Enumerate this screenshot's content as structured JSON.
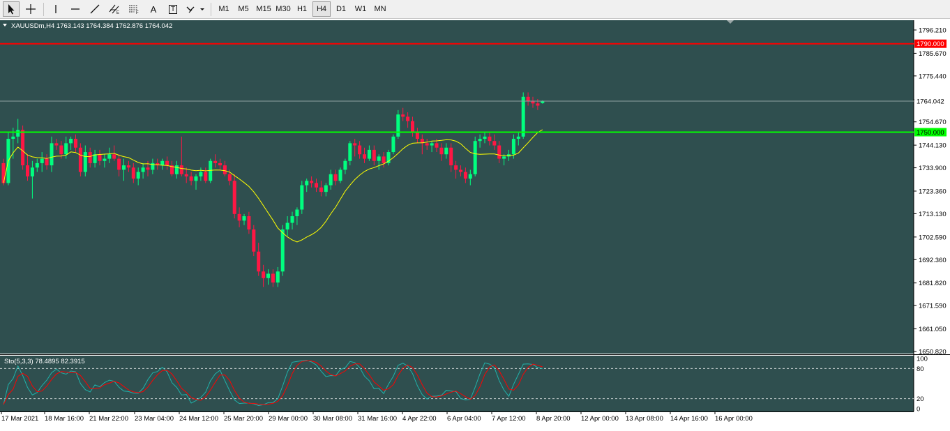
{
  "toolbar": {
    "tools": [
      {
        "name": "cursor-tool",
        "icon": "arrow-cursor-icon"
      },
      {
        "name": "crosshair-tool",
        "icon": "crosshair-icon"
      },
      {
        "name": "vertical-line-tool",
        "icon": "vertical-line-icon"
      },
      {
        "name": "horizontal-line-tool",
        "icon": "horizontal-line-icon"
      },
      {
        "name": "trendline-tool",
        "icon": "trendline-icon"
      },
      {
        "name": "equidistant-channel-tool",
        "icon": "channel-icon"
      },
      {
        "name": "fibonacci-tool",
        "icon": "fibonacci-icon"
      },
      {
        "name": "text-tool",
        "icon": "text-A-icon",
        "label": "A"
      },
      {
        "name": "text-label-tool",
        "icon": "text-label-icon",
        "label": "T"
      },
      {
        "name": "arrows-tool",
        "icon": "arrows-dropdown-icon"
      }
    ],
    "timeframes": [
      "M1",
      "M5",
      "M15",
      "M30",
      "H1",
      "H4",
      "D1",
      "W1",
      "MN"
    ],
    "active_timeframe": "H4"
  },
  "chart": {
    "info": "XAUUSDm,H4  1763.143 1764.384 1762.876 1764.042",
    "background": "#2f4f4f",
    "bull_color": "#00ff7f",
    "bear_color": "#ff1744",
    "ma_color": "#ffff00",
    "price_ticks": [
      "1796.210",
      "1785.670",
      "1775.440",
      "1764.670",
      "1754.670",
      "1744.130",
      "1733.900",
      "1723.360",
      "1713.130",
      "1702.590",
      "1692.360",
      "1681.820",
      "1671.590",
      "1661.050",
      "1650.820"
    ],
    "red_line_label": "1790.000",
    "green_line_label": "1750.000",
    "current_price_label": "1764.042",
    "stoch_info": "Sto(5,3,3) 78.4895 82.3915",
    "stoch_ticks": [
      "100",
      "80",
      "20",
      "0"
    ],
    "time_labels": [
      "17 Mar 2021",
      "18 Mar 16:00",
      "21 Mar 22:00",
      "23 Mar 04:00",
      "24 Mar 12:00",
      "25 Mar 20:00",
      "29 Mar 00:00",
      "30 Mar 08:00",
      "31 Mar 16:00",
      "4 Apr 22:00",
      "6 Apr 04:00",
      "7 Apr 12:00",
      "8 Apr 20:00",
      "12 Apr 00:00",
      "13 Apr 08:00",
      "14 Apr 16:00",
      "16 Apr 00:00"
    ]
  },
  "chart_data": {
    "type": "candlestick",
    "symbol": "XAUUSDm",
    "timeframe": "H4",
    "ylim": [
      1650.82,
      1796.21
    ],
    "horizontal_lines": [
      1790.0,
      1750.0
    ],
    "last_price": 1764.042,
    "candles": [
      [
        1736,
        1738,
        1726,
        1727
      ],
      [
        1727,
        1750,
        1726,
        1747
      ],
      [
        1747,
        1752,
        1738,
        1748
      ],
      [
        1748,
        1756,
        1745,
        1751
      ],
      [
        1751,
        1753,
        1733,
        1735
      ],
      [
        1735,
        1740,
        1728,
        1730
      ],
      [
        1730,
        1737,
        1720,
        1734
      ],
      [
        1734,
        1738,
        1732,
        1736
      ],
      [
        1736,
        1741,
        1732,
        1738
      ],
      [
        1738,
        1740,
        1733,
        1735
      ],
      [
        1735,
        1748,
        1732,
        1745
      ],
      [
        1745,
        1747,
        1742,
        1744
      ],
      [
        1744,
        1746,
        1738,
        1740
      ],
      [
        1740,
        1748,
        1738,
        1745
      ],
      [
        1745,
        1748,
        1742,
        1747
      ],
      [
        1747,
        1749,
        1741,
        1743
      ],
      [
        1743,
        1745,
        1730,
        1732
      ],
      [
        1732,
        1744,
        1730,
        1741
      ],
      [
        1741,
        1743,
        1734,
        1736
      ],
      [
        1736,
        1742,
        1734,
        1740
      ],
      [
        1740,
        1742,
        1735,
        1737
      ],
      [
        1737,
        1740,
        1734,
        1738
      ],
      [
        1738,
        1743,
        1736,
        1740
      ],
      [
        1740,
        1744,
        1737,
        1738
      ],
      [
        1738,
        1740,
        1730,
        1733
      ],
      [
        1733,
        1738,
        1728,
        1735
      ],
      [
        1735,
        1737,
        1732,
        1734
      ],
      [
        1734,
        1736,
        1727,
        1729
      ],
      [
        1729,
        1734,
        1726,
        1732
      ],
      [
        1732,
        1736,
        1729,
        1734
      ],
      [
        1734,
        1737,
        1730,
        1733
      ],
      [
        1733,
        1738,
        1731,
        1736
      ],
      [
        1736,
        1738,
        1733,
        1735
      ],
      [
        1735,
        1738,
        1733,
        1737
      ],
      [
        1737,
        1739,
        1733,
        1735
      ],
      [
        1735,
        1737,
        1730,
        1731
      ],
      [
        1731,
        1737,
        1729,
        1735
      ],
      [
        1735,
        1748,
        1730,
        1731
      ],
      [
        1731,
        1734,
        1727,
        1730
      ],
      [
        1730,
        1732,
        1726,
        1728
      ],
      [
        1728,
        1731,
        1724,
        1730
      ],
      [
        1730,
        1734,
        1728,
        1732
      ],
      [
        1732,
        1734,
        1727,
        1728
      ],
      [
        1728,
        1738,
        1727,
        1737
      ],
      [
        1737,
        1740,
        1734,
        1736
      ],
      [
        1736,
        1738,
        1733,
        1735
      ],
      [
        1735,
        1737,
        1730,
        1731
      ],
      [
        1731,
        1733,
        1726,
        1728
      ],
      [
        1728,
        1731,
        1711,
        1713
      ],
      [
        1713,
        1716,
        1707,
        1710
      ],
      [
        1710,
        1713,
        1708,
        1712
      ],
      [
        1712,
        1714,
        1704,
        1706
      ],
      [
        1706,
        1708,
        1694,
        1696
      ],
      [
        1696,
        1700,
        1685,
        1687
      ],
      [
        1687,
        1690,
        1680,
        1684
      ],
      [
        1684,
        1688,
        1681,
        1686
      ],
      [
        1686,
        1688,
        1680,
        1682
      ],
      [
        1682,
        1689,
        1680,
        1687
      ],
      [
        1687,
        1708,
        1685,
        1706
      ],
      [
        1706,
        1712,
        1703,
        1709
      ],
      [
        1709,
        1714,
        1706,
        1712
      ],
      [
        1712,
        1716,
        1708,
        1715
      ],
      [
        1715,
        1728,
        1713,
        1726
      ],
      [
        1726,
        1729,
        1723,
        1728
      ],
      [
        1728,
        1730,
        1725,
        1727
      ],
      [
        1727,
        1729,
        1723,
        1725
      ],
      [
        1725,
        1728,
        1721,
        1723
      ],
      [
        1723,
        1727,
        1721,
        1726
      ],
      [
        1726,
        1733,
        1724,
        1731
      ],
      [
        1731,
        1733,
        1726,
        1728
      ],
      [
        1728,
        1734,
        1727,
        1733
      ],
      [
        1733,
        1738,
        1731,
        1737
      ],
      [
        1737,
        1746,
        1735,
        1745
      ],
      [
        1745,
        1747,
        1739,
        1744
      ],
      [
        1744,
        1746,
        1738,
        1740
      ],
      [
        1740,
        1743,
        1736,
        1738
      ],
      [
        1738,
        1744,
        1737,
        1742
      ],
      [
        1742,
        1744,
        1735,
        1737
      ],
      [
        1737,
        1740,
        1733,
        1739
      ],
      [
        1739,
        1741,
        1734,
        1736
      ],
      [
        1736,
        1742,
        1735,
        1741
      ],
      [
        1741,
        1749,
        1740,
        1748
      ],
      [
        1748,
        1760,
        1747,
        1758
      ],
      [
        1758,
        1761,
        1755,
        1757
      ],
      [
        1757,
        1759,
        1752,
        1755
      ],
      [
        1755,
        1757,
        1748,
        1750
      ],
      [
        1750,
        1752,
        1745,
        1747
      ],
      [
        1747,
        1749,
        1740,
        1745
      ],
      [
        1745,
        1747,
        1742,
        1744
      ],
      [
        1744,
        1746,
        1741,
        1745
      ],
      [
        1745,
        1747,
        1741,
        1743
      ],
      [
        1743,
        1745,
        1737,
        1740
      ],
      [
        1740,
        1745,
        1738,
        1743
      ],
      [
        1743,
        1745,
        1732,
        1735
      ],
      [
        1735,
        1737,
        1729,
        1733
      ],
      [
        1733,
        1735,
        1730,
        1732
      ],
      [
        1732,
        1734,
        1727,
        1729
      ],
      [
        1729,
        1733,
        1726,
        1731
      ],
      [
        1731,
        1748,
        1730,
        1746
      ],
      [
        1746,
        1749,
        1743,
        1747
      ],
      [
        1747,
        1750,
        1745,
        1748
      ],
      [
        1748,
        1750,
        1744,
        1746
      ],
      [
        1746,
        1749,
        1742,
        1744
      ],
      [
        1744,
        1746,
        1736,
        1738
      ],
      [
        1738,
        1740,
        1735,
        1739
      ],
      [
        1739,
        1742,
        1737,
        1740
      ],
      [
        1740,
        1749,
        1738,
        1747
      ],
      [
        1747,
        1750,
        1744,
        1748
      ],
      [
        1748,
        1768,
        1747,
        1766
      ],
      [
        1766,
        1768,
        1762,
        1764
      ],
      [
        1764,
        1766,
        1761,
        1763
      ],
      [
        1763,
        1765,
        1760,
        1762
      ],
      [
        1763.143,
        1764.384,
        1762.876,
        1764.042
      ]
    ],
    "ma_period_visible": true,
    "stochastic": {
      "params": "5,3,3",
      "main_last": 78.4895,
      "signal_last": 82.3915,
      "levels": [
        20,
        80
      ]
    }
  }
}
